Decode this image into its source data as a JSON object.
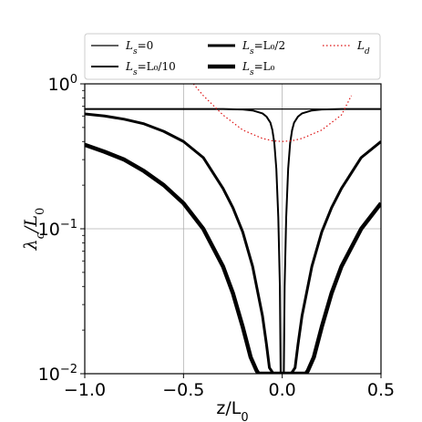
{
  "chart_data": {
    "type": "line",
    "xlabel": "z/L",
    "xlabel_sub": "0",
    "ylabel": "λ",
    "ylabel_sub": "c",
    "ylabel_denom": "/L",
    "ylabel_denom_sub": "0",
    "xlim": [
      -1.0,
      0.5
    ],
    "ylim": [
      0.01,
      1.0
    ],
    "yscale": "log",
    "grid": true,
    "legend_position": "top",
    "x_ticks": [
      -1.0,
      -0.5,
      0.0,
      0.5
    ],
    "x_tick_labels": [
      "−1.0",
      "−0.5",
      "0.0",
      "0.5"
    ],
    "y_ticks": [
      0.01,
      0.1,
      1.0
    ],
    "y_tick_labels": [
      {
        "base": "10",
        "exp": "−2"
      },
      {
        "base": "10",
        "exp": "−1"
      },
      {
        "base": "10",
        "exp": "0"
      }
    ],
    "series": [
      {
        "name": "L_s = 0",
        "legend_label": "L",
        "legend_sub": "s",
        "legend_rest": "=0",
        "color": "#000000",
        "style": "solid",
        "width": 1.2,
        "x": [
          -1.0,
          -0.5,
          0.0,
          0.5
        ],
        "y": [
          0.67,
          0.67,
          0.67,
          0.67
        ]
      },
      {
        "name": "L_s = L_0/10",
        "legend_label": "L",
        "legend_sub": "s",
        "legend_rest": "=L₀/10",
        "color": "#000000",
        "style": "solid",
        "width": 2.0,
        "x": [
          -1.0,
          -0.3,
          -0.2,
          -0.15,
          -0.1,
          -0.08,
          -0.06,
          -0.05,
          -0.04,
          -0.03,
          -0.02,
          -0.012,
          -0.008,
          0.008,
          0.012,
          0.02,
          0.03,
          0.04,
          0.05,
          0.06,
          0.08,
          0.1,
          0.15,
          0.2,
          0.3,
          0.5
        ],
        "y": [
          0.67,
          0.67,
          0.665,
          0.655,
          0.625,
          0.595,
          0.54,
          0.48,
          0.39,
          0.26,
          0.12,
          0.04,
          0.01,
          0.01,
          0.04,
          0.12,
          0.26,
          0.39,
          0.48,
          0.54,
          0.595,
          0.625,
          0.655,
          0.665,
          0.67,
          0.67
        ]
      },
      {
        "name": "L_s = L_0/2",
        "legend_label": "L",
        "legend_sub": "s",
        "legend_rest": "=L₀/2",
        "color": "#000000",
        "style": "solid",
        "width": 3.0,
        "x": [
          -1.0,
          -0.9,
          -0.8,
          -0.7,
          -0.6,
          -0.5,
          -0.4,
          -0.3,
          -0.25,
          -0.2,
          -0.15,
          -0.1,
          -0.08,
          -0.065,
          -0.045,
          0.045,
          0.065,
          0.08,
          0.1,
          0.15,
          0.2,
          0.25,
          0.3,
          0.4,
          0.5
        ],
        "y": [
          0.62,
          0.6,
          0.57,
          0.53,
          0.47,
          0.4,
          0.31,
          0.19,
          0.14,
          0.095,
          0.055,
          0.025,
          0.016,
          0.011,
          0.01,
          0.01,
          0.011,
          0.016,
          0.025,
          0.055,
          0.095,
          0.14,
          0.19,
          0.31,
          0.4
        ]
      },
      {
        "name": "L_s = L_0",
        "legend_label": "L",
        "legend_sub": "s",
        "legend_rest": "=L₀",
        "color": "#000000",
        "style": "solid",
        "width": 4.5,
        "x": [
          -1.0,
          -0.9,
          -0.8,
          -0.7,
          -0.6,
          -0.5,
          -0.4,
          -0.3,
          -0.25,
          -0.2,
          -0.16,
          -0.13,
          -0.12,
          0.12,
          0.13,
          0.16,
          0.2,
          0.25,
          0.3,
          0.4,
          0.5
        ],
        "y": [
          0.38,
          0.34,
          0.3,
          0.25,
          0.2,
          0.15,
          0.1,
          0.055,
          0.036,
          0.021,
          0.013,
          0.0105,
          0.01,
          0.01,
          0.0105,
          0.013,
          0.021,
          0.036,
          0.055,
          0.1,
          0.15
        ]
      },
      {
        "name": "L_d",
        "legend_label": "L",
        "legend_sub": "d",
        "legend_rest": "",
        "color": "#dd1111",
        "style": "dotted",
        "width": 1.2,
        "x": [
          -0.45,
          -0.4,
          -0.3,
          -0.2,
          -0.1,
          -0.05,
          0.0,
          0.05,
          0.1,
          0.2,
          0.3,
          0.35
        ],
        "y": [
          1.0,
          0.83,
          0.61,
          0.48,
          0.42,
          0.405,
          0.4,
          0.405,
          0.42,
          0.48,
          0.61,
          0.83
        ]
      }
    ]
  }
}
